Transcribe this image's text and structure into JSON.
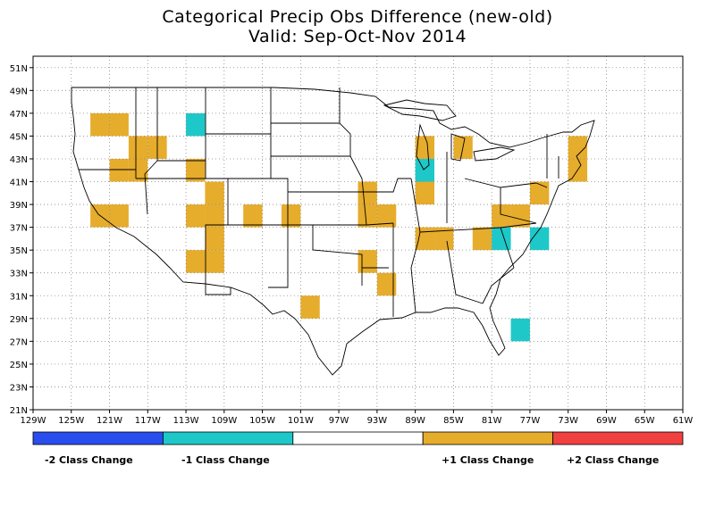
{
  "title": {
    "line1": "Categorical Precip Obs Difference (new-old)",
    "line2": "Valid: Sep-Oct-Nov 2014"
  },
  "map": {
    "lon_range": [
      -129,
      -61
    ],
    "lat_range": [
      21,
      52
    ],
    "x_ticks": [
      "129W",
      "125W",
      "121W",
      "117W",
      "113W",
      "109W",
      "105W",
      "101W",
      "97W",
      "93W",
      "89W",
      "85W",
      "81W",
      "77W",
      "73W",
      "69W",
      "65W",
      "61W"
    ],
    "y_ticks": [
      "21N",
      "23N",
      "25N",
      "27N",
      "29N",
      "31N",
      "33N",
      "35N",
      "37N",
      "39N",
      "41N",
      "43N",
      "45N",
      "47N",
      "49N",
      "51N"
    ],
    "grid": "dotted"
  },
  "colors": {
    "minus2": "#2a4dee",
    "minus1": "#1ec8c8",
    "zero": "#ffffff",
    "plus1": "#e6ac2c",
    "plus2": "#f04040"
  },
  "cells": {
    "plus1": [
      [
        -123,
        45
      ],
      [
        -121,
        45
      ],
      [
        -119,
        43
      ],
      [
        -117,
        43
      ],
      [
        -121,
        41
      ],
      [
        -119,
        41
      ],
      [
        -123,
        37
      ],
      [
        -121,
        37
      ],
      [
        -113,
        41
      ],
      [
        -111,
        39
      ],
      [
        -111,
        37
      ],
      [
        -111,
        35
      ],
      [
        -111,
        33
      ],
      [
        -113,
        37
      ],
      [
        -113,
        33
      ],
      [
        -107,
        37
      ],
      [
        -103,
        37
      ],
      [
        -101,
        29
      ],
      [
        -95,
        39
      ],
      [
        -95,
        37
      ],
      [
        -93,
        37
      ],
      [
        -95,
        33
      ],
      [
        -93,
        31
      ],
      [
        -89,
        43
      ],
      [
        -89,
        39
      ],
      [
        -89,
        35
      ],
      [
        -87,
        35
      ],
      [
        -85,
        43
      ],
      [
        -81,
        37
      ],
      [
        -79,
        37
      ],
      [
        -83,
        35
      ],
      [
        -77,
        39
      ],
      [
        -73,
        41
      ],
      [
        -73,
        43
      ]
    ],
    "minus1": [
      [
        -113,
        45
      ],
      [
        -89,
        41
      ],
      [
        -81,
        35
      ],
      [
        -77,
        35
      ],
      [
        -79,
        27
      ]
    ]
  },
  "legend": {
    "segments": [
      "minus2",
      "minus1",
      "zero",
      "plus1",
      "plus2"
    ],
    "labels": [
      "-2 Class Change",
      "-1 Class Change",
      "+1 Class Change",
      "+2 Class Change"
    ]
  }
}
